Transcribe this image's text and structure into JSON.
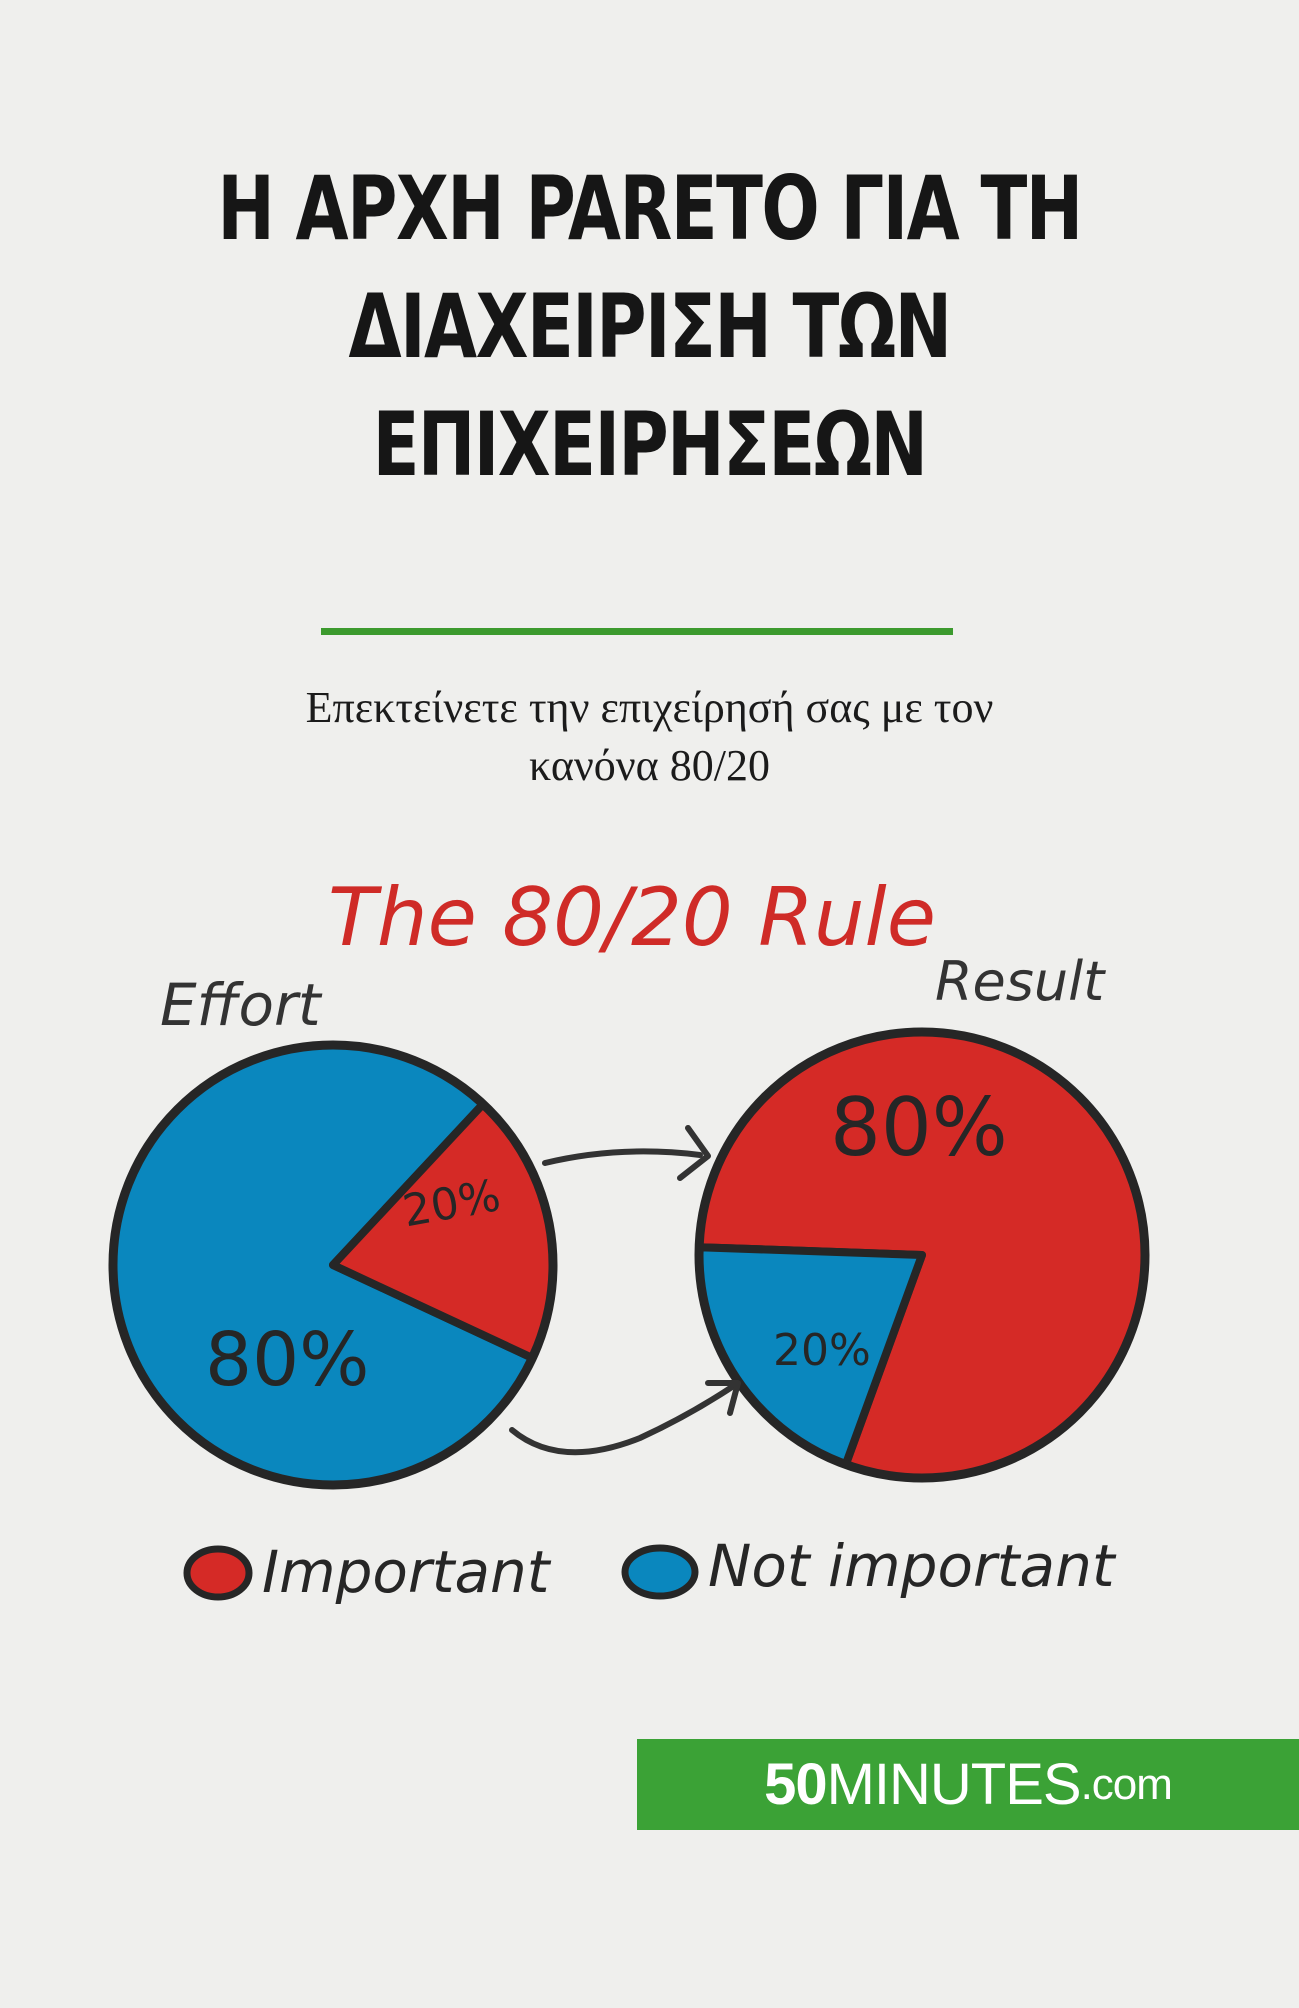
{
  "cover": {
    "title_lines": [
      "Η ΑΡΧΗ PARETO ΓΙΑ ΤΗ",
      "ΔΙΑΧΕΙΡΙΣΗ ΤΩΝ",
      "ΕΠΙΧΕΙΡΗΣΕΩΝ"
    ],
    "subtitle_lines": [
      "Επεκτείνετε την επιχείρησή σας με τον",
      "κανόνα 80/20"
    ],
    "accent_color": "#3c9a2e"
  },
  "illustration": {
    "heading": "The 80/20 Rule",
    "colors": {
      "important": "#d52a26",
      "not_important": "#0a87be",
      "outline": "#262626",
      "heading": "#cf2b27"
    },
    "left_pie": {
      "label": "Effort",
      "big_label": "80%",
      "small_label": "20%",
      "important_share": 20,
      "not_important_share": 80
    },
    "right_pie": {
      "label": "Result",
      "big_label": "80%",
      "small_label": "20%",
      "important_share": 80,
      "not_important_share": 20
    },
    "legend": {
      "important": "Important",
      "not_important": "Not important"
    }
  },
  "publisher": {
    "number": "50",
    "name": "MINUTES",
    "domain": ".com"
  }
}
